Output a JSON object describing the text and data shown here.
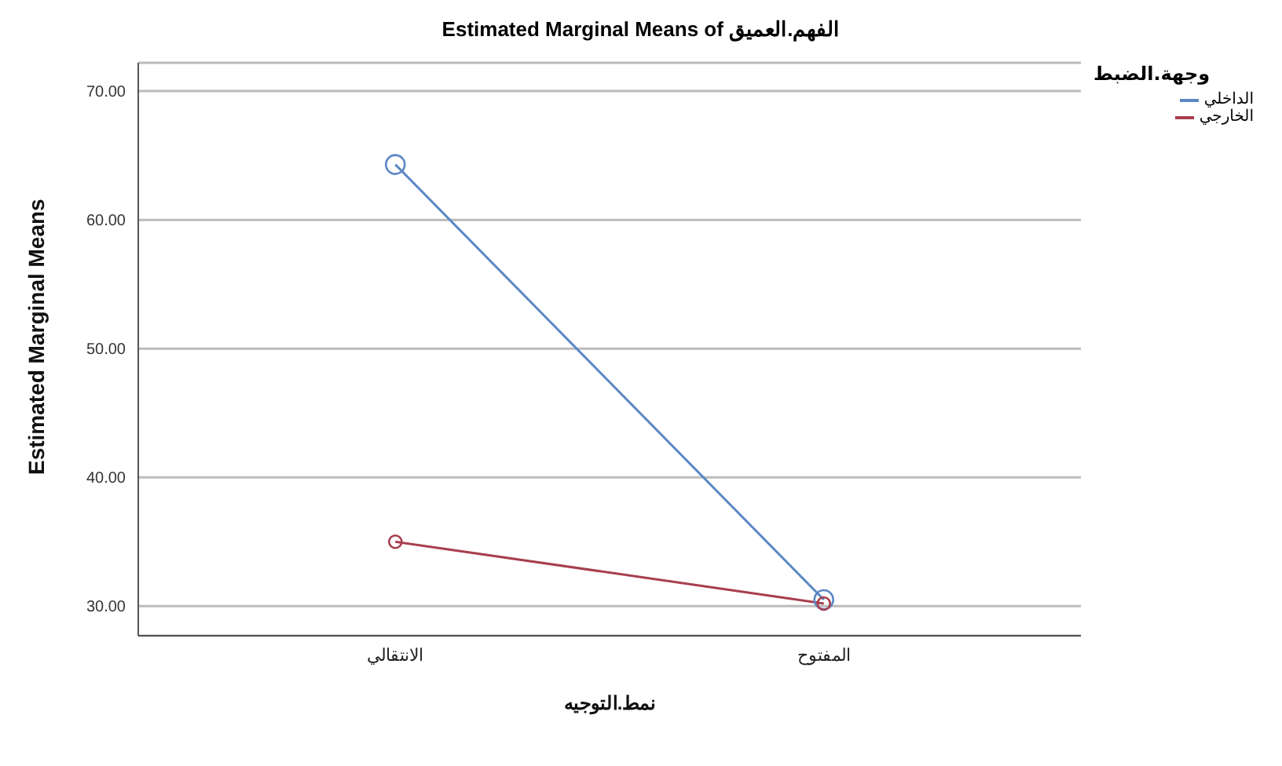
{
  "chart_data": {
    "type": "line",
    "title": "Estimated Marginal Means of الفهم.العميق",
    "xlabel": "نمط.التوجيه",
    "ylabel": "Estimated Marginal Means",
    "legend_title": "وجهة.الضبط",
    "categories": [
      "الانتقالي",
      "المفتوح"
    ],
    "series": [
      {
        "name": "الداخلي",
        "color": "#5b87c5",
        "values": [
          64.3,
          30.5
        ]
      },
      {
        "name": "الخارجي",
        "color": "#a83e4e",
        "values": [
          35.0,
          30.2
        ]
      }
    ],
    "ylim": [
      27.7,
      72.2
    ],
    "yticks": [
      {
        "value": 30,
        "label": "30.00"
      },
      {
        "value": 40,
        "label": "40.00"
      },
      {
        "value": 50,
        "label": "50.00"
      },
      {
        "value": 60,
        "label": "60.00"
      },
      {
        "value": 70,
        "label": "70.00"
      }
    ],
    "grid": "y",
    "legend": "top right",
    "marker": "circle",
    "line_style": "solid"
  }
}
